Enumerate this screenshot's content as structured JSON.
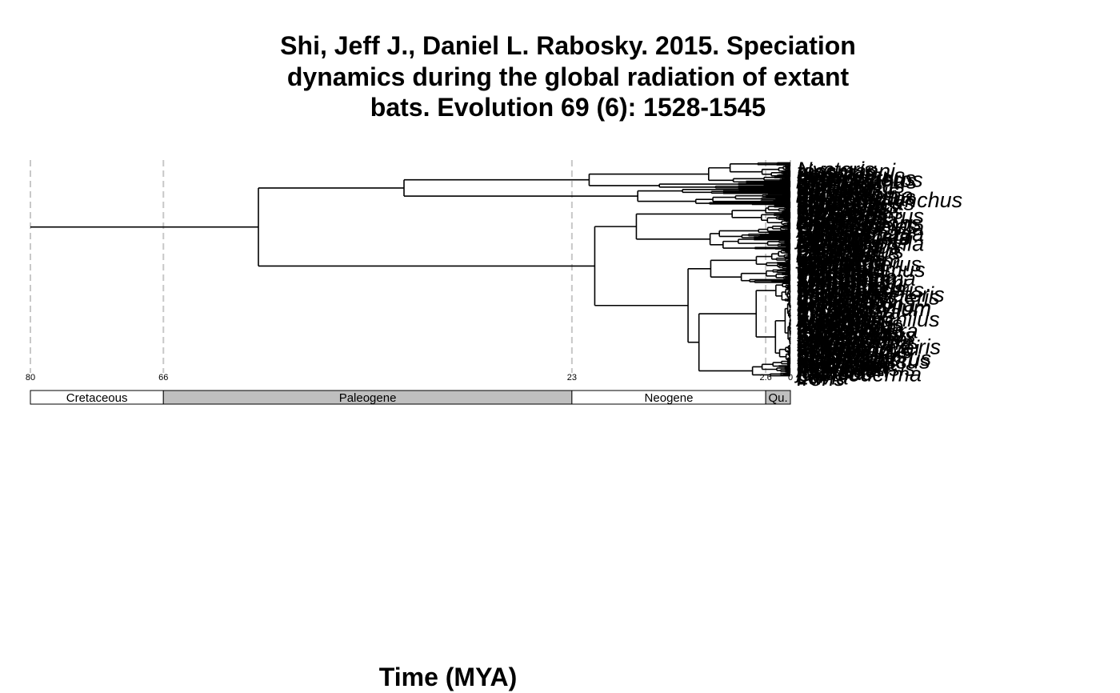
{
  "title_lines": [
    "Shi, Jeff J., Daniel L. Rabosky. 2015. Speciation",
    "dynamics during the global radiation of extant",
    "bats. Evolution 69 (6): 1528-1545"
  ],
  "xlabel": "Time (MYA)",
  "colors": {
    "branch": "#000000",
    "guide": "#c8c8c8",
    "paleogene": "#bfbfbf",
    "neogene": "#ffffff",
    "cretaceous": "#ffffff",
    "quaternary": "#bfbfbf"
  },
  "axis": {
    "domain_mya": [
      80,
      0
    ],
    "ticks": [
      {
        "value": 80,
        "label": "80"
      },
      {
        "value": 66,
        "label": "66"
      },
      {
        "value": 23,
        "label": "23"
      },
      {
        "value": 2.6,
        "label": "2.6"
      },
      {
        "value": 0,
        "label": "0"
      }
    ]
  },
  "periods": [
    {
      "name": "Cretaceous",
      "start": 80,
      "end": 66,
      "color": "#ffffff"
    },
    {
      "name": "Paleogene",
      "start": 66,
      "end": 23,
      "color": "#bfbfbf"
    },
    {
      "name": "Neogene",
      "start": 23,
      "end": 2.6,
      "color": "#ffffff"
    },
    {
      "name": "Qu.",
      "start": 2.6,
      "end": 0,
      "color": "#bfbfbf"
    }
  ],
  "root_age_mya": 80,
  "visible_tip_labels": [
    "Nycteris",
    "tessmanni",
    "sinensis",
    "boissieri",
    "thalassinus",
    "pernyi",
    "macrotarsus",
    "Hipposideros",
    "Rhinolophus",
    "Pteropus",
    "caesia",
    "mystacinus",
    "leptura",
    "abramus",
    "parvula",
    "pipistrellus",
    "Myotis",
    "maximus",
    "chrysocoma",
    "emarginatus",
    "Neoromicia",
    "melanorrhynchus",
    "Tadarida",
    "nigrogriseus",
    "ingens",
    "flavescens",
    "Eptesicus",
    "adversus",
    "Kerivoula",
    "brasiliensis",
    "Molossus",
    "peruana",
    "Mormopterus",
    "planiceps",
    "Noctilio",
    "albiventris",
    "macrotis",
    "Nyctinomops",
    "Otomops",
    "Cheiromeles",
    "Lonchophylla",
    "Sturnira",
    "Artibeus",
    "Carollia",
    "Glossophaga",
    "soricina",
    "perspicillata",
    "jamaicensis",
    "lituratus",
    "lilium",
    "Mormoops",
    "megalophylla",
    "blainvillei",
    "Pteronotus",
    "parnellii",
    "davyi",
    "personatus",
    "Desmodus",
    "rotundus",
    "Diaemus",
    "youngi",
    "Diphylla",
    "ecaudata",
    "Vampyrum",
    "spectrum",
    "Chrotopterus",
    "auritus",
    "Trachops",
    "cirrhosus",
    "Phyllostomus",
    "hastatus",
    "discolor",
    "elongatus",
    "Tonatia",
    "saurophila",
    "Lophostoma",
    "silvicolum",
    "Mimon",
    "crenulatum",
    "bennettii",
    "Macrotus",
    "waterhousii",
    "californicus",
    "Micronycteris",
    "megalotis",
    "minuta",
    "Lampronycteris",
    "brachyotis",
    "Glyphonycteris",
    "sylvestris",
    "daviesi",
    "Trinycteris",
    "nicefori",
    "Lonchorhina",
    "aurita",
    "Macrophyllum",
    "macrophyllum",
    "Tyroptera",
    "Thyroptera",
    "tricolor",
    "discifera",
    "Furipterus",
    "horrens",
    "Amorphochilus",
    "schnablii",
    "Natalus",
    "stramineus",
    "Mystacina",
    "tuberculata",
    "Myzopoda",
    "aurita",
    "Emballonura",
    "monticola",
    "Taphozous",
    "saccolaimus",
    "Saccopteryx",
    "bilineata",
    "Rhinopoma",
    "hardwickii",
    "Megaderma",
    "lyra",
    "spasma",
    "Craseonycteris",
    "thonglongyai",
    "Rousettus",
    "aegyptiacus",
    "Eidolon",
    "helvum",
    "Cynopterus",
    "brachyotis",
    "Epomophorus",
    "wahlbergi",
    "Macroglossus",
    "minimus",
    "Nyctimene",
    "albiventer",
    "Dobsonia",
    "moluccensis",
    "Acerodon",
    "jubatus",
    "tokudae",
    "Cardioderma",
    "cor",
    "Lavia",
    "frons"
  ]
}
